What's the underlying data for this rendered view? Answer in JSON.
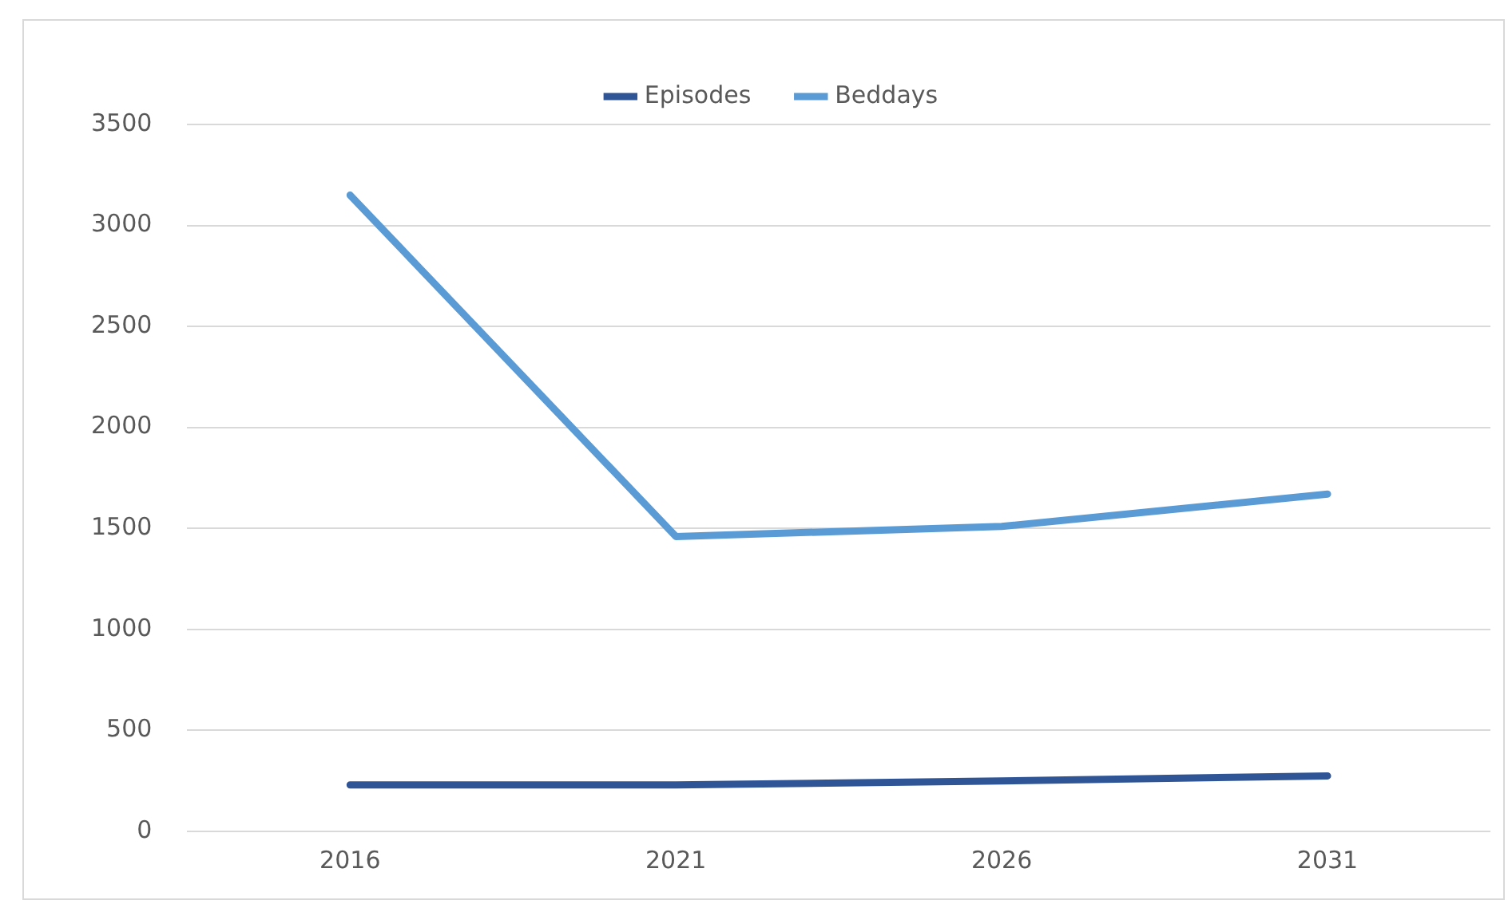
{
  "chart_data": {
    "type": "line",
    "categories": [
      "2016",
      "2021",
      "2026",
      "2031"
    ],
    "series": [
      {
        "name": "Episodes",
        "color": "#2f5597",
        "values": [
          230,
          230,
          250,
          275
        ]
      },
      {
        "name": "Beddays",
        "color": "#5b9bd5",
        "values": [
          3150,
          1460,
          1510,
          1670
        ]
      }
    ],
    "ylim": [
      0,
      3500
    ],
    "yticks": [
      0,
      500,
      1000,
      1500,
      2000,
      2500,
      3000,
      3500
    ],
    "grid": "y",
    "legend": "top",
    "marker": "none",
    "line_style": "solid"
  }
}
